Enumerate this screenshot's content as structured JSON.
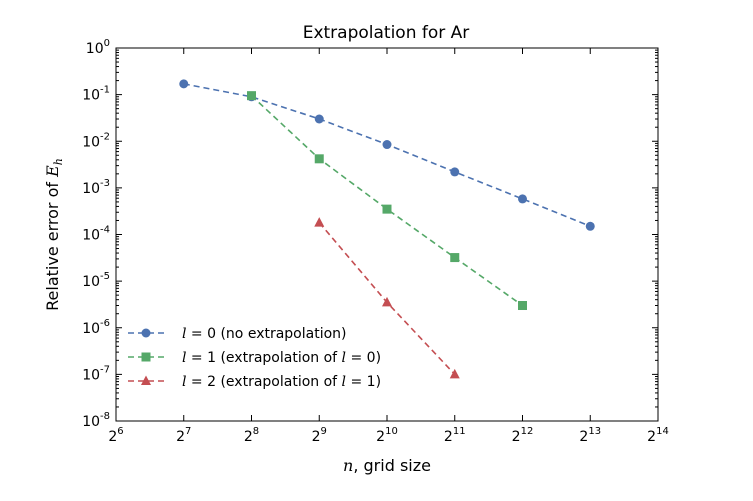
{
  "chart_data": {
    "type": "line",
    "title": "Extrapolation for Ar",
    "xlabel": {
      "var": "n",
      "rest": ", grid size"
    },
    "ylabel": {
      "prefix": "Relative error of ",
      "var": "E",
      "sub": "h"
    },
    "xscale": "log2",
    "yscale": "log10",
    "xlim": [
      64,
      16384
    ],
    "ylim": [
      1e-08,
      1
    ],
    "xticks": [
      {
        "base": "2",
        "exp": "6",
        "value": 64
      },
      {
        "base": "2",
        "exp": "7",
        "value": 128
      },
      {
        "base": "2",
        "exp": "8",
        "value": 256
      },
      {
        "base": "2",
        "exp": "9",
        "value": 512
      },
      {
        "base": "2",
        "exp": "10",
        "value": 1024
      },
      {
        "base": "2",
        "exp": "11",
        "value": 2048
      },
      {
        "base": "2",
        "exp": "12",
        "value": 4096
      },
      {
        "base": "2",
        "exp": "13",
        "value": 8192
      },
      {
        "base": "2",
        "exp": "14",
        "value": 16384
      }
    ],
    "yticks": [
      {
        "base": "10",
        "exp": "0",
        "value": 1
      },
      {
        "base": "10",
        "exp": "-1",
        "value": 0.1
      },
      {
        "base": "10",
        "exp": "-2",
        "value": 0.01
      },
      {
        "base": "10",
        "exp": "-3",
        "value": 0.001
      },
      {
        "base": "10",
        "exp": "-4",
        "value": 0.0001
      },
      {
        "base": "10",
        "exp": "-5",
        "value": 1e-05
      },
      {
        "base": "10",
        "exp": "-6",
        "value": 1e-06
      },
      {
        "base": "10",
        "exp": "-7",
        "value": 1e-07
      },
      {
        "base": "10",
        "exp": "-8",
        "value": 1e-08
      }
    ],
    "grid": false,
    "legend_position": "lower-left",
    "series": [
      {
        "label_var": "l",
        "label_text": " = 0 (no extrapolation)",
        "label_parts": [],
        "color": "#4c72b0",
        "marker": "circle",
        "points": [
          {
            "x": 128,
            "y": 0.17
          },
          {
            "x": 256,
            "y": 0.09
          },
          {
            "x": 512,
            "y": 0.03
          },
          {
            "x": 1024,
            "y": 0.0085
          },
          {
            "x": 2048,
            "y": 0.0022
          },
          {
            "x": 4096,
            "y": 0.00058
          },
          {
            "x": 8192,
            "y": 0.00015
          }
        ]
      },
      {
        "label_var": "l",
        "label_text": " = 1 (extrapolation of ",
        "label_parts": [
          {
            "var": "l"
          },
          {
            "text": " = 0)"
          }
        ],
        "color": "#55a868",
        "marker": "square",
        "points": [
          {
            "x": 256,
            "y": 0.095
          },
          {
            "x": 512,
            "y": 0.0042
          },
          {
            "x": 1024,
            "y": 0.00035
          },
          {
            "x": 2048,
            "y": 3.2e-05
          },
          {
            "x": 4096,
            "y": 3e-06
          }
        ]
      },
      {
        "label_var": "l",
        "label_text": " = 2 (extrapolation of ",
        "label_parts": [
          {
            "var": "l"
          },
          {
            "text": " = 1)"
          }
        ],
        "color": "#c44e52",
        "marker": "triangle",
        "points": [
          {
            "x": 512,
            "y": 0.00018
          },
          {
            "x": 1024,
            "y": 3.5e-06
          },
          {
            "x": 2048,
            "y": 1e-07
          }
        ]
      }
    ]
  }
}
